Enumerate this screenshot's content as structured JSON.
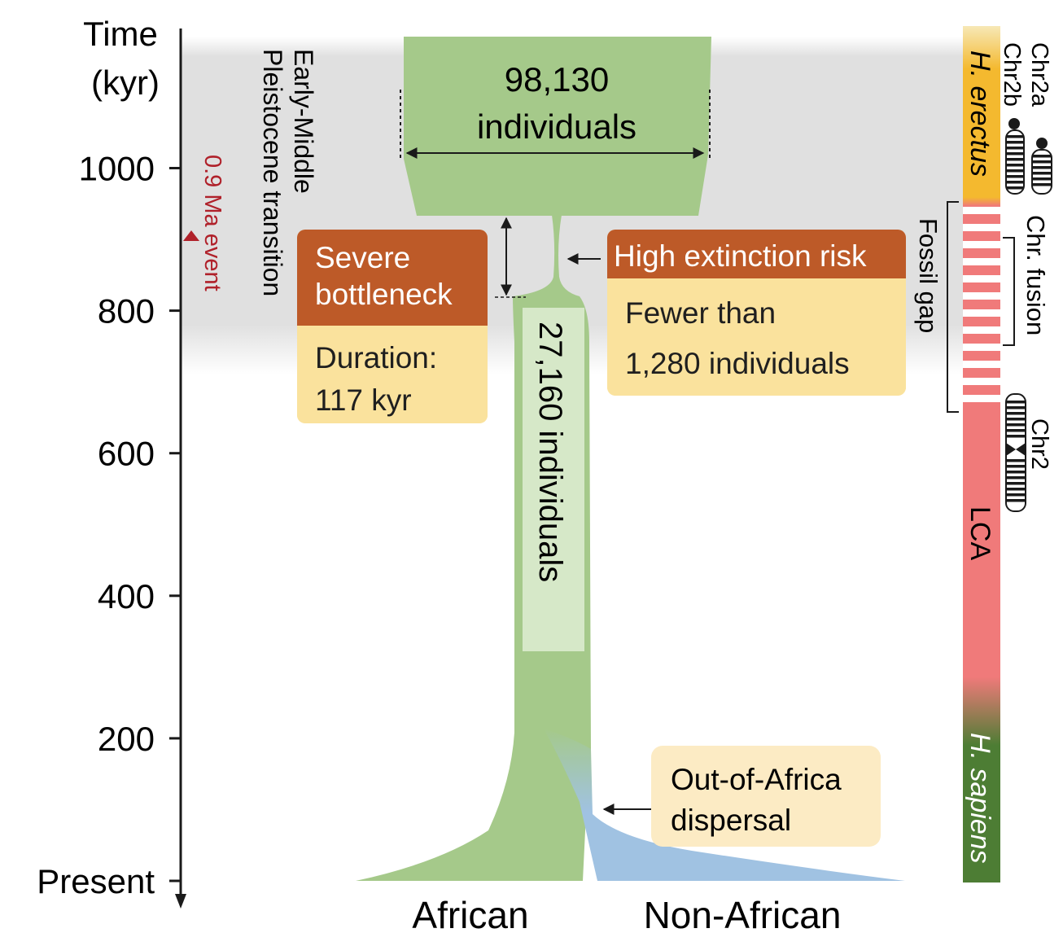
{
  "axis": {
    "title_line1": "Time",
    "title_line2": "(kyr)",
    "ticks": [
      {
        "label": "1000",
        "value": 1000
      },
      {
        "label": "800",
        "value": 800
      },
      {
        "label": "600",
        "value": 600
      },
      {
        "label": "400",
        "value": 400
      },
      {
        "label": "200",
        "value": 200
      },
      {
        "label": "Present",
        "value": 0
      }
    ]
  },
  "transition": {
    "line1": "Early-Middle",
    "line2": "Pleistocene transition",
    "event_label": "0.9 Ma event",
    "event_color": "#b0212a"
  },
  "ancestral_pop": {
    "line1": "98,130",
    "line2": "individuals"
  },
  "bottleneck_box": {
    "title_line1": "Severe",
    "title_line2": "bottleneck",
    "body_line1": "Duration:",
    "body_line2": "117 kyr"
  },
  "risk_box": {
    "title": "High extinction risk",
    "body_line1": "Fewer than",
    "body_line2": "1,280 individuals"
  },
  "stem_label": "27,160 individuals",
  "dispersal": {
    "line1": "Out-of-Africa",
    "line2": "dispersal"
  },
  "populations": {
    "african": "African",
    "non_african": "Non-African"
  },
  "species_bar": {
    "erectus": "H. erectus",
    "lca": "LCA",
    "sapiens": "H. sapiens",
    "fossil_gap": "Fossil gap"
  },
  "chromosomes": {
    "chr2a": "Chr2a",
    "chr2b": "Chr2b",
    "fusion": "Chr. fusion",
    "chr2": "Chr2"
  },
  "colors": {
    "green": "#a5c98a",
    "blue": "#a0c2e2",
    "brown": "#bd5a28",
    "cream": "#fae29d",
    "erectus": "#f4b92f",
    "lca": "#f07a7a",
    "sapiens": "#4d7d34"
  }
}
